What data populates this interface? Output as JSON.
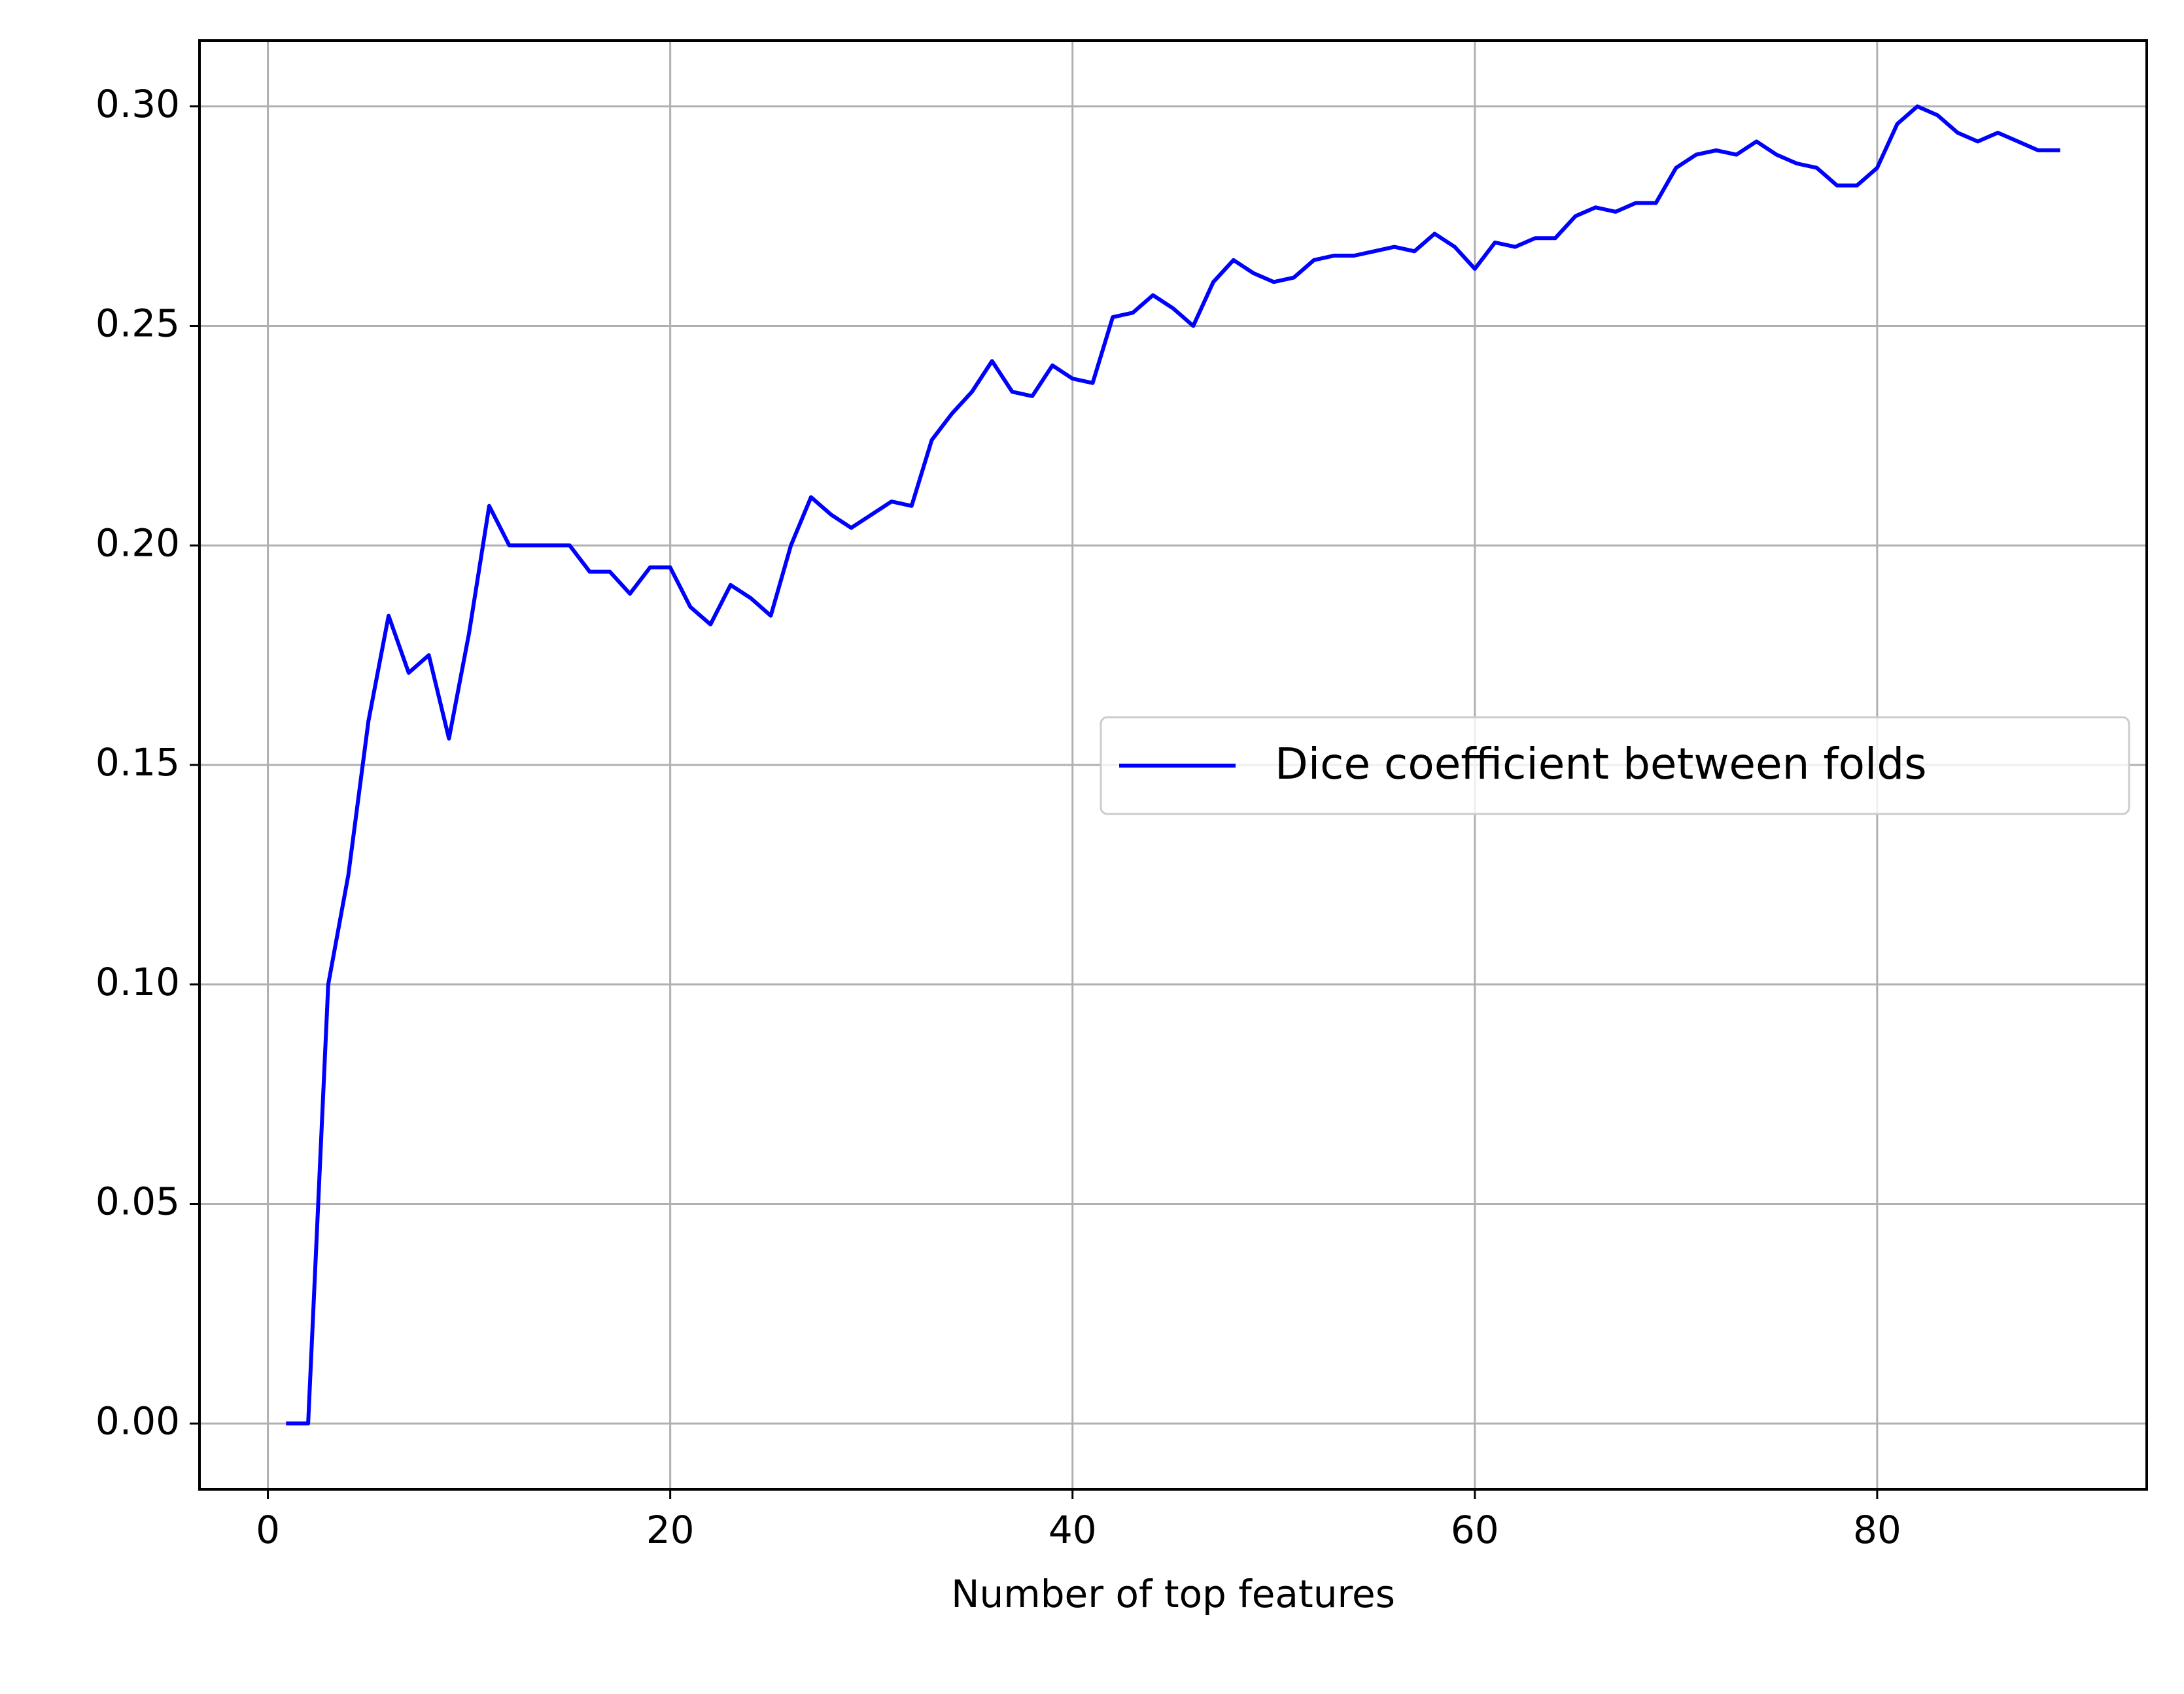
{
  "chart_data": {
    "type": "line",
    "title": "",
    "xlabel": "Number of top features",
    "ylabel": "",
    "xlim": [
      -3.4,
      93.4
    ],
    "ylim": [
      -0.015,
      0.315
    ],
    "xticks": [
      0,
      20,
      40,
      60,
      80
    ],
    "xtick_labels": [
      "0",
      "20",
      "40",
      "60",
      "80"
    ],
    "yticks": [
      0.0,
      0.05,
      0.1,
      0.15,
      0.2,
      0.25,
      0.3
    ],
    "ytick_labels": [
      "0.00",
      "0.05",
      "0.10",
      "0.15",
      "0.20",
      "0.25",
      "0.30"
    ],
    "grid": true,
    "legend_position": "center-right",
    "series": [
      {
        "name": "Dice coefficient between folds",
        "color": "#0000ff",
        "x": [
          1,
          2,
          3,
          4,
          5,
          6,
          7,
          8,
          9,
          10,
          11,
          12,
          13,
          14,
          15,
          16,
          17,
          18,
          19,
          20,
          21,
          22,
          23,
          24,
          25,
          26,
          27,
          28,
          29,
          30,
          31,
          32,
          33,
          34,
          35,
          36,
          37,
          38,
          39,
          40,
          41,
          42,
          43,
          44,
          45,
          46,
          47,
          48,
          49,
          50,
          51,
          52,
          53,
          54,
          55,
          56,
          57,
          58,
          59,
          60,
          61,
          62,
          63,
          64,
          65,
          66,
          67,
          68,
          69,
          70,
          71,
          72,
          73,
          74,
          75,
          76,
          77,
          78,
          79,
          80,
          81,
          82,
          83,
          84,
          85,
          86,
          87,
          88,
          89
        ],
        "y": [
          0.0,
          0.0,
          0.1,
          0.125,
          0.16,
          0.184,
          0.171,
          0.175,
          0.156,
          0.18,
          0.209,
          0.2,
          0.2,
          0.2,
          0.2,
          0.194,
          0.194,
          0.189,
          0.195,
          0.195,
          0.186,
          0.182,
          0.191,
          0.188,
          0.184,
          0.2,
          0.211,
          0.207,
          0.204,
          0.207,
          0.21,
          0.209,
          0.224,
          0.23,
          0.235,
          0.242,
          0.235,
          0.234,
          0.241,
          0.238,
          0.237,
          0.252,
          0.253,
          0.257,
          0.254,
          0.25,
          0.26,
          0.265,
          0.262,
          0.26,
          0.261,
          0.265,
          0.266,
          0.266,
          0.267,
          0.268,
          0.267,
          0.271,
          0.268,
          0.263,
          0.269,
          0.268,
          0.27,
          0.27,
          0.275,
          0.277,
          0.276,
          0.278,
          0.278,
          0.286,
          0.289,
          0.29,
          0.289,
          0.292,
          0.289,
          0.287,
          0.286,
          0.282,
          0.282,
          0.286,
          0.296,
          0.3,
          0.298,
          0.294,
          0.292,
          0.294,
          0.292,
          0.29,
          0.29
        ]
      }
    ]
  }
}
